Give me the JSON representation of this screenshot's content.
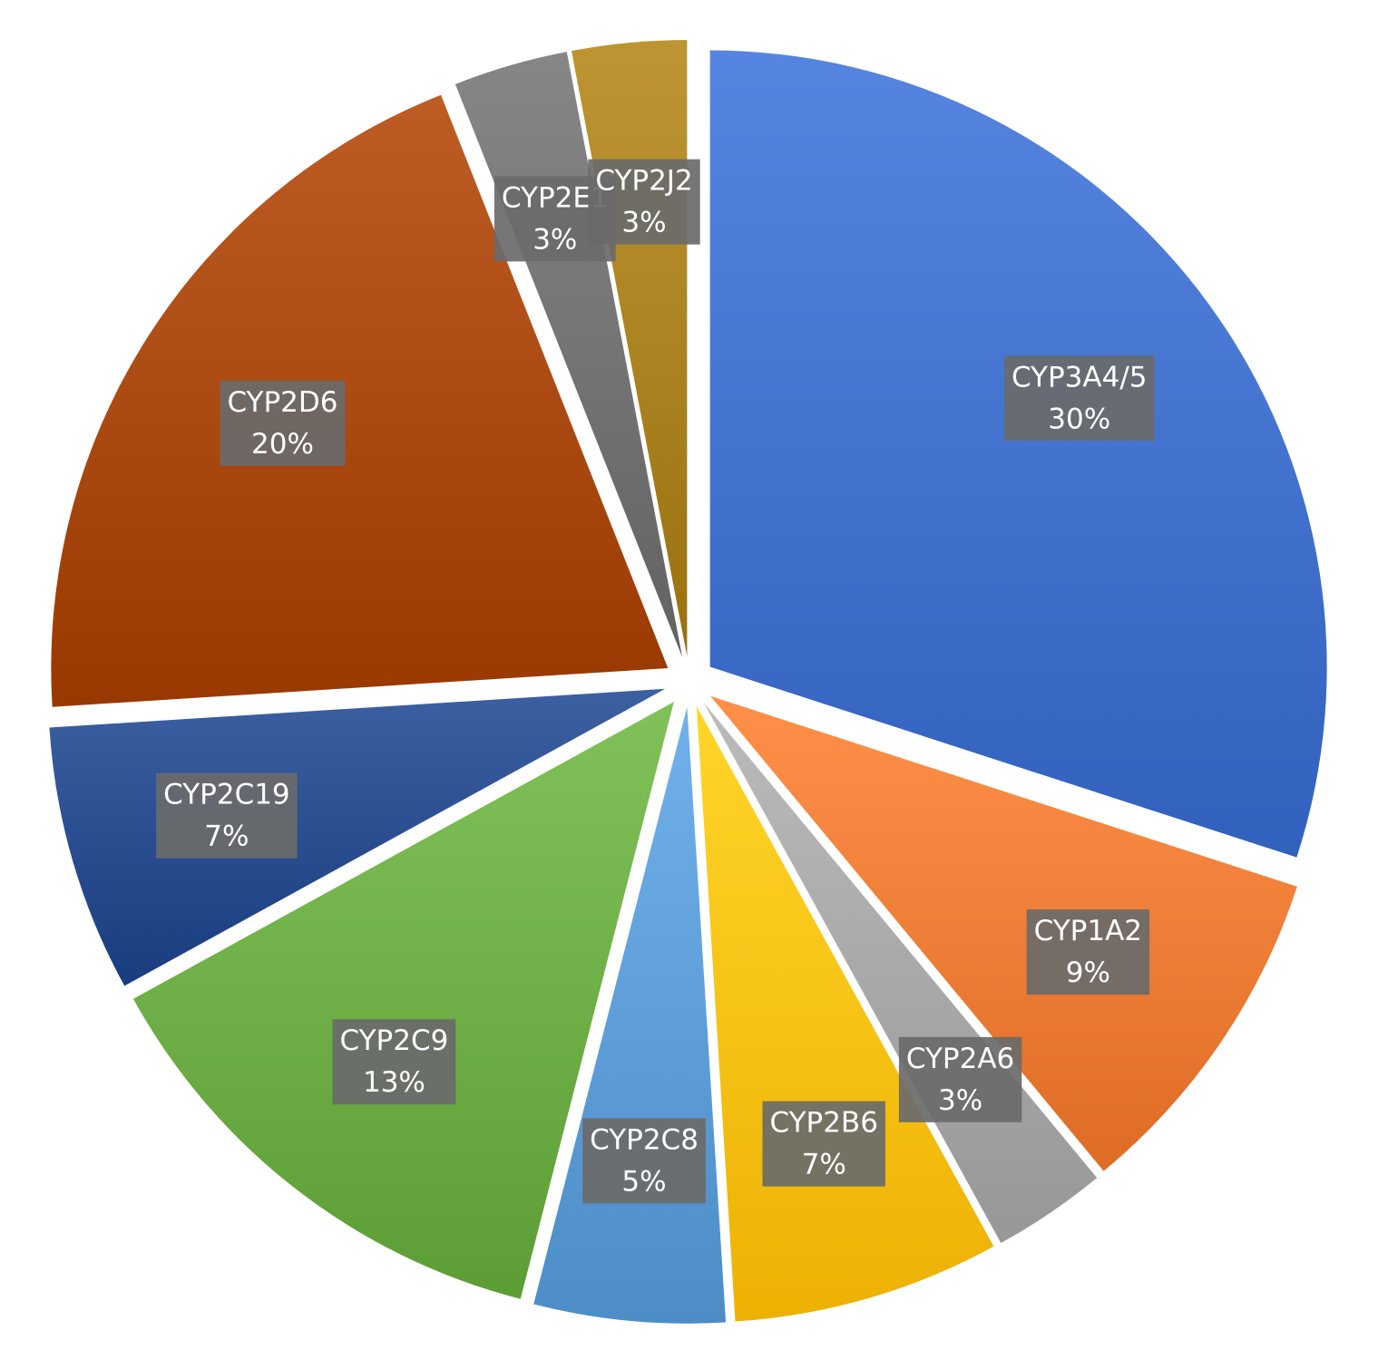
{
  "chart_data": {
    "type": "pie",
    "title": "",
    "legend": "none",
    "start_angle_deg": 0,
    "direction": "clockwise",
    "exploded": true,
    "slices": [
      {
        "name": "CYP3A4/5",
        "value": 30,
        "value_label": "30%",
        "color": "#3f6fca"
      },
      {
        "name": "CYP1A2",
        "value": 9,
        "value_label": "9%",
        "color": "#ec7a33"
      },
      {
        "name": "CYP2A6",
        "value": 3,
        "value_label": "3%",
        "color": "#a5a5a5"
      },
      {
        "name": "CYP2B6",
        "value": 7,
        "value_label": "7%",
        "color": "#fbbf12"
      },
      {
        "name": "CYP2C8",
        "value": 5,
        "value_label": "5%",
        "color": "#5b9bd5"
      },
      {
        "name": "CYP2C9",
        "value": 13,
        "value_label": "13%",
        "color": "#6aab43"
      },
      {
        "name": "CYP2C19",
        "value": 7,
        "value_label": "7%",
        "color": "#264a8c"
      },
      {
        "name": "CYP2D6",
        "value": 20,
        "value_label": "20%",
        "color": "#a8460f"
      },
      {
        "name": "CYP2E1",
        "value": 3,
        "value_label": "3%",
        "color": "#707070"
      },
      {
        "name": "CYP2J2",
        "value": 3,
        "value_label": "3%",
        "color": "#a87f1d"
      }
    ]
  }
}
